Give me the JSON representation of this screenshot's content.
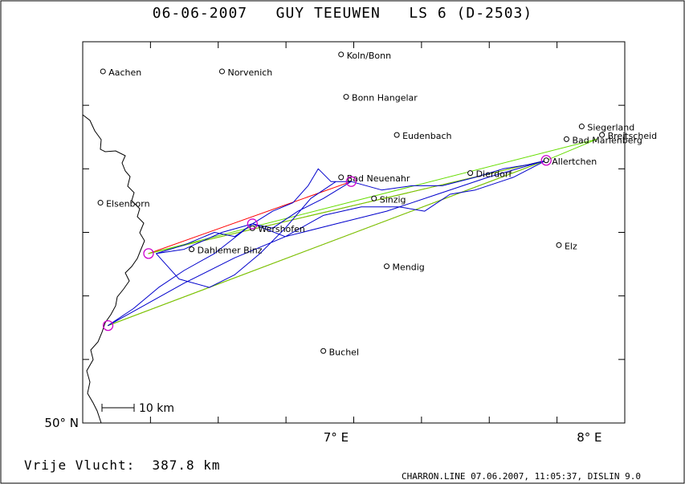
{
  "header": {
    "title": "06-06-2007   GUY TEEUWEN   LS 6 (D-2503)"
  },
  "footer": {
    "distance_label": "Vrije Vlucht:",
    "distance_value": "387.8 km",
    "program_info": "CHARRON.LINE 07.06.2007, 11:05:37, DISLIN 9.0"
  },
  "chart_data": {
    "type": "map",
    "xlim": [
      6.0,
      8.14
    ],
    "ylim": [
      50.0,
      50.9
    ],
    "tick_labels": {
      "x": [
        {
          "value": 7.0,
          "label": "7° E"
        },
        {
          "value": 8.0,
          "label": "8° E"
        }
      ],
      "y": [
        {
          "value": 50.0,
          "label": "50° N"
        }
      ]
    },
    "scale_bar": {
      "label": "10 km"
    },
    "places": [
      {
        "name": "Aachen",
        "lon": 6.08,
        "lat": 50.83
      },
      {
        "name": "Norvenich",
        "lon": 6.55,
        "lat": 50.83
      },
      {
        "name": "Koln/Bonn",
        "lon": 7.02,
        "lat": 50.87
      },
      {
        "name": "Bonn Hangelar",
        "lon": 7.04,
        "lat": 50.77
      },
      {
        "name": "Eudenbach",
        "lon": 7.24,
        "lat": 50.68
      },
      {
        "name": "Siegerland",
        "lon": 7.97,
        "lat": 50.7
      },
      {
        "name": "Breitscheid",
        "lon": 8.05,
        "lat": 50.68
      },
      {
        "name": "Bad Marienberg",
        "lon": 7.91,
        "lat": 50.67
      },
      {
        "name": "Allertchen",
        "lon": 7.83,
        "lat": 50.62
      },
      {
        "name": "Dierdorf",
        "lon": 7.53,
        "lat": 50.59
      },
      {
        "name": "Bad Neuenahr",
        "lon": 7.02,
        "lat": 50.58
      },
      {
        "name": "Sinzig",
        "lon": 7.15,
        "lat": 50.53
      },
      {
        "name": "Elsenborn",
        "lon": 6.07,
        "lat": 50.52
      },
      {
        "name": "Wershofen",
        "lon": 6.67,
        "lat": 50.46
      },
      {
        "name": "Dahlemer Binz",
        "lon": 6.43,
        "lat": 50.41
      },
      {
        "name": "Mendig",
        "lon": 7.2,
        "lat": 50.37
      },
      {
        "name": "Elz",
        "lon": 7.88,
        "lat": 50.42
      },
      {
        "name": "Buchel",
        "lon": 6.95,
        "lat": 50.17
      }
    ],
    "turnpoints": [
      {
        "lon": 6.26,
        "lat": 50.4
      },
      {
        "lon": 6.67,
        "lat": 50.47
      },
      {
        "lon": 7.06,
        "lat": 50.57
      },
      {
        "lon": 7.83,
        "lat": 50.62
      },
      {
        "lon": 6.1,
        "lat": 50.23
      }
    ],
    "series": [
      {
        "color": "#ff0000",
        "points": [
          [
            6.26,
            50.4
          ],
          [
            7.06,
            50.57
          ],
          [
            6.26,
            50.4
          ],
          [
            7.83,
            50.62
          ],
          [
            6.1,
            50.23
          ],
          [
            7.83,
            50.62
          ]
        ]
      },
      {
        "color": "#66dd00",
        "points": [
          [
            6.26,
            50.4
          ],
          [
            8.03,
            50.67
          ],
          [
            7.83,
            50.62
          ],
          [
            6.1,
            50.23
          ],
          [
            7.83,
            50.62
          ],
          [
            6.26,
            50.4
          ]
        ]
      },
      {
        "color": "#0000cc",
        "points": [
          [
            6.29,
            50.4
          ],
          [
            6.4,
            50.42
          ],
          [
            6.52,
            50.45
          ],
          [
            6.6,
            50.44
          ],
          [
            6.67,
            50.47
          ],
          [
            6.75,
            50.5
          ],
          [
            6.83,
            50.52
          ],
          [
            6.89,
            50.56
          ],
          [
            6.93,
            50.6
          ],
          [
            6.98,
            50.57
          ],
          [
            7.06,
            50.57
          ],
          [
            7.18,
            50.55
          ],
          [
            7.3,
            50.56
          ],
          [
            7.42,
            50.56
          ],
          [
            7.55,
            50.58
          ],
          [
            7.66,
            50.6
          ],
          [
            7.76,
            50.61
          ],
          [
            7.83,
            50.62
          ],
          [
            7.7,
            50.58
          ],
          [
            7.55,
            50.55
          ],
          [
            7.45,
            50.54
          ],
          [
            7.35,
            50.5
          ],
          [
            7.25,
            50.51
          ],
          [
            7.1,
            50.51
          ],
          [
            6.95,
            50.49
          ],
          [
            6.8,
            50.44
          ],
          [
            6.67,
            50.47
          ],
          [
            6.55,
            50.45
          ],
          [
            6.4,
            50.41
          ],
          [
            6.29,
            50.4
          ],
          [
            6.38,
            50.34
          ],
          [
            6.5,
            50.32
          ],
          [
            6.6,
            50.35
          ],
          [
            6.7,
            50.4
          ],
          [
            6.8,
            50.46
          ],
          [
            6.9,
            50.53
          ],
          [
            7.0,
            50.57
          ],
          [
            7.06,
            50.57
          ],
          [
            6.95,
            50.53
          ],
          [
            6.85,
            50.5
          ],
          [
            6.75,
            50.46
          ],
          [
            6.67,
            50.47
          ],
          [
            6.52,
            50.4
          ],
          [
            6.4,
            50.36
          ],
          [
            6.3,
            50.32
          ],
          [
            6.2,
            50.27
          ],
          [
            6.1,
            50.23
          ],
          [
            6.25,
            50.28
          ],
          [
            6.4,
            50.33
          ],
          [
            6.6,
            50.39
          ],
          [
            6.8,
            50.44
          ],
          [
            7.0,
            50.47
          ],
          [
            7.2,
            50.5
          ],
          [
            7.4,
            50.54
          ],
          [
            7.6,
            50.58
          ],
          [
            7.83,
            50.62
          ]
        ]
      }
    ]
  }
}
